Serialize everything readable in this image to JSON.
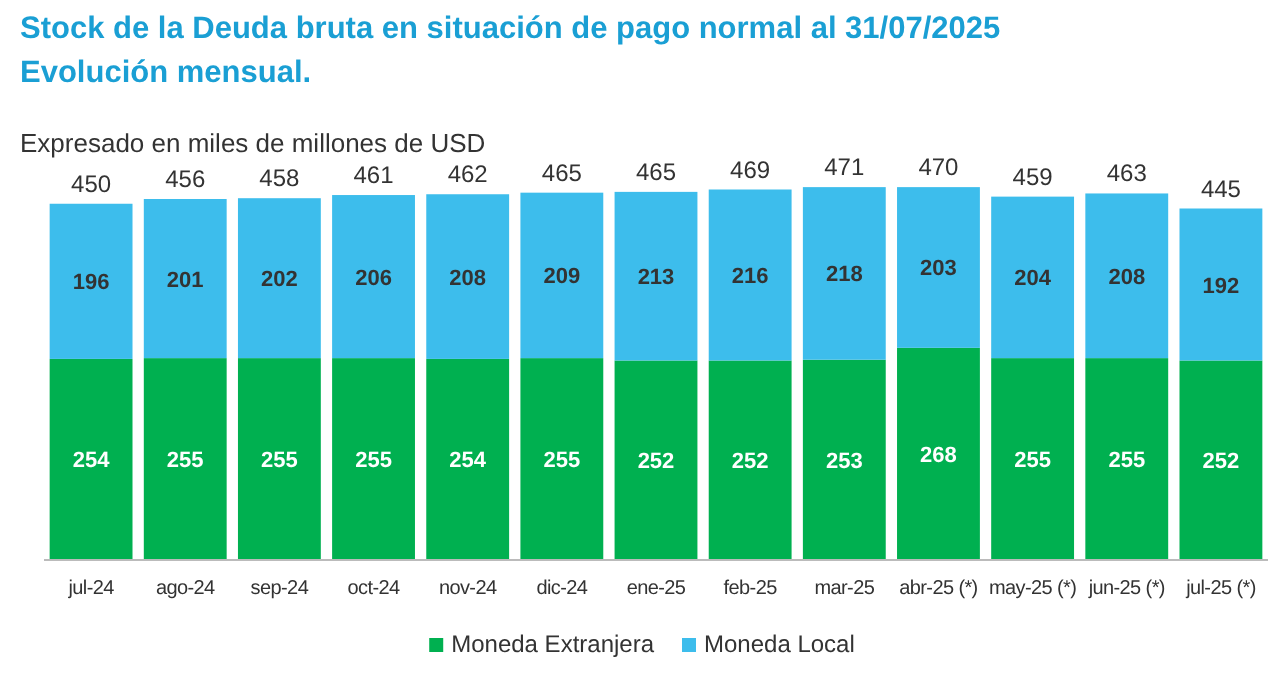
{
  "chart_data": {
    "type": "bar",
    "title": "Stock de la Deuda bruta en situación de pago normal al 31/07/2025\nEvolución mensual.",
    "subtitle": "Expresado en miles de millones de USD",
    "categories": [
      "jul-24",
      "ago-24",
      "sep-24",
      "oct-24",
      "nov-24",
      "dic-24",
      "ene-25",
      "feb-25",
      "mar-25",
      "abr-25 (*)",
      "may-25 (*)",
      "jun-25 (*)",
      "jul-25 (*)"
    ],
    "stacked": true,
    "series": [
      {
        "name": "Moneda Extranjera",
        "color": "#00b050",
        "values": [
          254,
          255,
          255,
          255,
          254,
          255,
          252,
          252,
          253,
          268,
          255,
          255,
          252
        ]
      },
      {
        "name": "Moneda Local",
        "color": "#3dbdec",
        "values": [
          196,
          201,
          202,
          206,
          208,
          209,
          213,
          216,
          218,
          203,
          204,
          208,
          192
        ]
      }
    ],
    "totals": [
      "450",
      "456",
      "458",
      "461",
      "462",
      "465",
      "465",
      "469",
      "471",
      "470",
      "459",
      "463",
      "445"
    ],
    "data_labels": true,
    "ylim": [
      0,
      480
    ],
    "legend": "bottom"
  }
}
